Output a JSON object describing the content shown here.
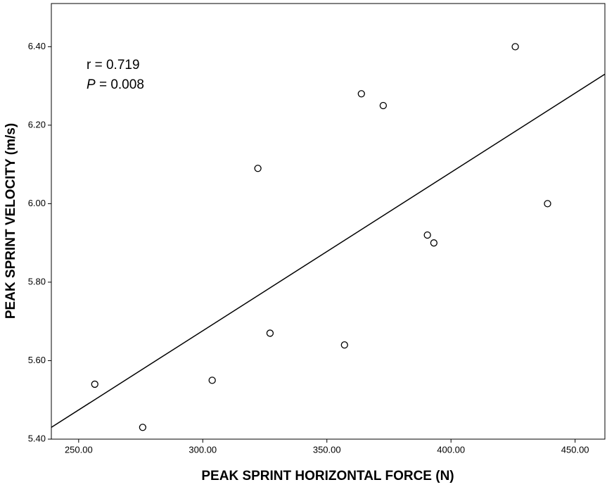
{
  "chart_data": {
    "type": "scatter",
    "x_label": "PEAK SPRINT HORIZONTAL FORCE (N)",
    "y_label": "PEAK SPRINT VELOCITY (m/s)",
    "annotations": [
      [
        "r = 0.719"
      ],
      [
        "P",
        " = 0.008"
      ]
    ],
    "series": [
      {
        "color": "#000000",
        "x": [
          256.5,
          275.8,
          303.8,
          322.2,
          327.1,
          357.1,
          363.9,
          372.7,
          390.5,
          393.1,
          425.9,
          438.9
        ],
        "values": [
          5.54,
          5.43,
          5.55,
          6.09,
          5.67,
          5.64,
          6.28,
          6.25,
          5.92,
          5.9,
          6.4,
          6.0
        ]
      }
    ],
    "fit_line": {
      "x": [
        239,
        462
      ],
      "values": [
        5.43,
        6.33
      ]
    },
    "xlim": [
      239,
      462
    ],
    "ylim": [
      5.4,
      6.51
    ],
    "xticks": [
      {
        "value": 250,
        "label": "250.00"
      },
      {
        "value": 300,
        "label": "300.00"
      },
      {
        "value": 350,
        "label": "350.00"
      },
      {
        "value": 400,
        "label": "400.00"
      },
      {
        "value": 450,
        "label": "450.00"
      }
    ],
    "yticks": [
      {
        "value": 5.4,
        "label": "5.40"
      },
      {
        "value": 5.6,
        "label": "5.60"
      },
      {
        "value": 5.8,
        "label": "5.80"
      },
      {
        "value": 6.0,
        "label": "6.00"
      },
      {
        "value": 6.2,
        "label": "6.20"
      },
      {
        "value": 6.4,
        "label": "6.40"
      }
    ],
    "grid": false
  }
}
